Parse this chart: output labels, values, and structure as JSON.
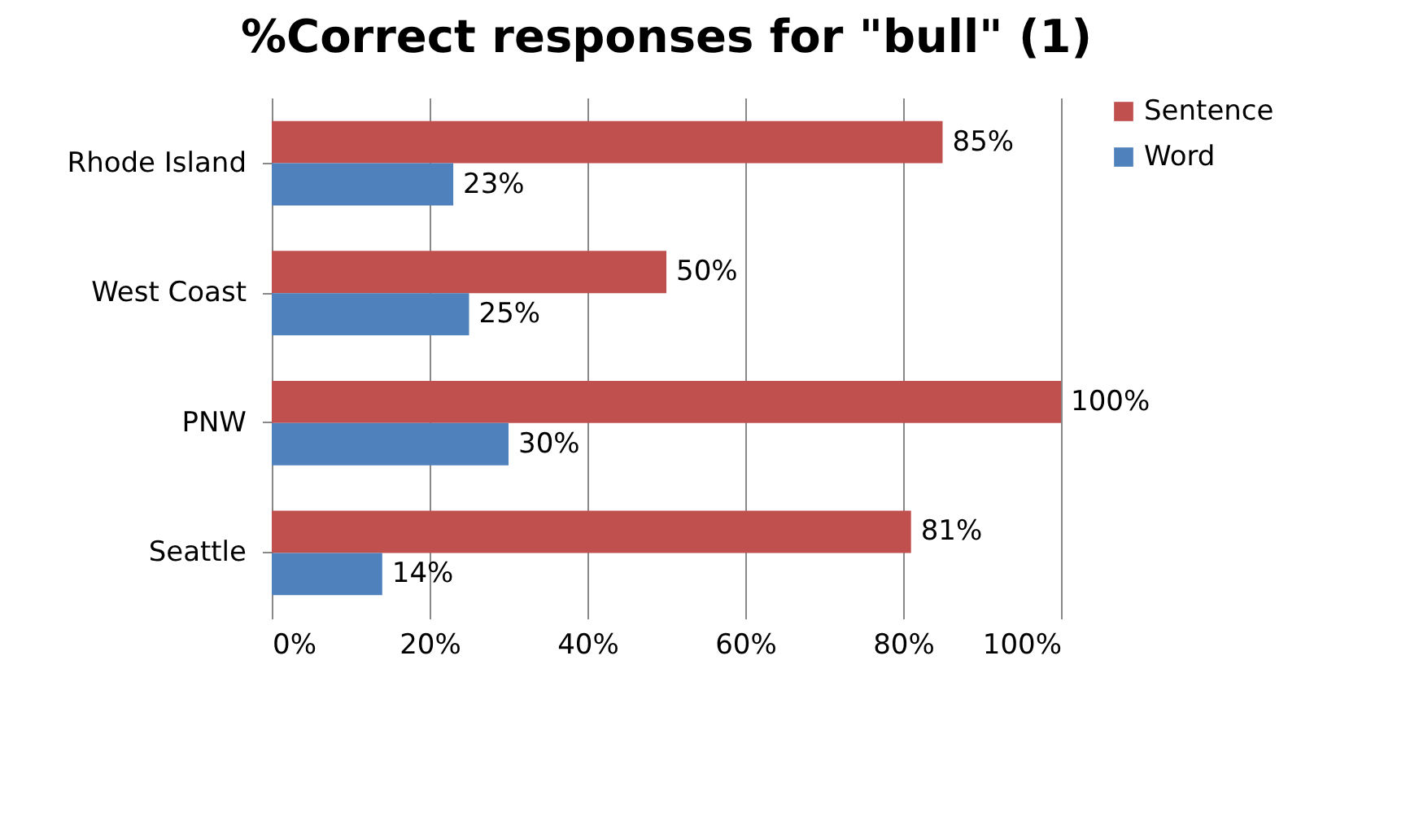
{
  "chart_data": {
    "type": "bar",
    "orientation": "horizontal",
    "title": "%Correct responses for \"bull\" (1)",
    "categories": [
      "Rhode Island",
      "West Coast",
      "PNW",
      "Seattle"
    ],
    "series": [
      {
        "name": "Sentence",
        "color": "#c0504d",
        "values": [
          85,
          50,
          100,
          81
        ],
        "value_labels": [
          "85%",
          "50%",
          "100%",
          "81%"
        ]
      },
      {
        "name": "Word",
        "color": "#4f81bd",
        "values": [
          23,
          25,
          30,
          14
        ],
        "value_labels": [
          "23%",
          "25%",
          "30%",
          "14%"
        ]
      }
    ],
    "xlim": [
      0,
      100
    ],
    "xticks": [
      {
        "value": 0,
        "label": "0%"
      },
      {
        "value": 20,
        "label": "20%"
      },
      {
        "value": 40,
        "label": "40%"
      },
      {
        "value": 60,
        "label": "60%"
      },
      {
        "value": 80,
        "label": "80%"
      },
      {
        "value": 100,
        "label": "100%"
      }
    ],
    "grid": "x",
    "legend": "right"
  }
}
